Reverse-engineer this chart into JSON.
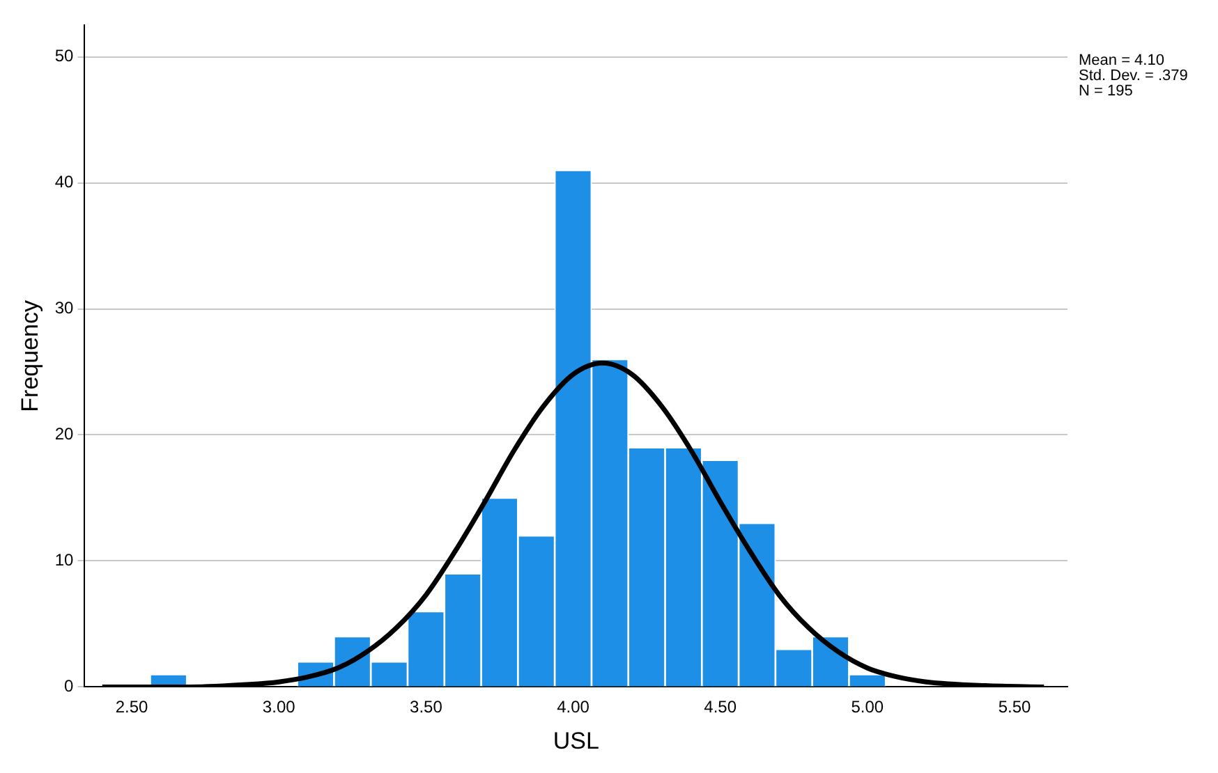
{
  "chart_data": {
    "type": "histogram",
    "xlabel": "USL",
    "ylabel": "Frequency",
    "bins": [
      2.5625,
      2.6875,
      2.8125,
      2.9375,
      3.0625,
      3.1875,
      3.3125,
      3.4375,
      3.5625,
      3.6875,
      3.8125,
      3.9375,
      4.0625,
      4.1875,
      4.3125,
      4.4375,
      4.5625,
      4.6875,
      4.8125,
      4.9375,
      5.0625
    ],
    "values": [
      1,
      0,
      0,
      0,
      2,
      4,
      2,
      6,
      9,
      15,
      12,
      41,
      26,
      19,
      19,
      18,
      13,
      3,
      4,
      1
    ],
    "color": "#1e8fe6",
    "series": [
      {
        "type": "line",
        "color": "#000000",
        "x": [
          2.4,
          2.7,
          2.9,
          3.0,
          3.1,
          3.2,
          3.3,
          3.4,
          3.5,
          3.6,
          3.7,
          3.8,
          3.9,
          4.0,
          4.1,
          4.2,
          4.3,
          4.4,
          4.5,
          4.6,
          4.7,
          4.8,
          4.9,
          5.0,
          5.1,
          5.2,
          5.4,
          5.6
        ],
        "values": [
          0,
          0,
          0.2,
          0.4,
          0.8,
          1.5,
          2.8,
          4.7,
          7.3,
          10.8,
          14.7,
          18.8,
          22.3,
          24.8,
          25.7,
          24.8,
          22.3,
          18.8,
          14.7,
          10.8,
          7.3,
          4.7,
          2.8,
          1.5,
          0.8,
          0.4,
          0.1,
          0
        ]
      }
    ],
    "xlim": [
      2.34,
      5.68
    ],
    "xticks": [
      {
        "value": 2.5,
        "label": "2.50"
      },
      {
        "value": 3,
        "label": "3.00"
      },
      {
        "value": 3.5,
        "label": "3.50"
      },
      {
        "value": 4,
        "label": "4.00"
      },
      {
        "value": 4.5,
        "label": "4.50"
      },
      {
        "value": 5,
        "label": "5.00"
      },
      {
        "value": 5.5,
        "label": "5.50"
      }
    ],
    "ylim": [
      0,
      52.5
    ],
    "yticks": [
      0,
      10,
      20,
      30,
      40,
      50
    ],
    "grid": "y",
    "legend": false,
    "marker": "none",
    "line_style": "solid",
    "annotations": [
      "Mean = 4.10",
      "Std. Dev. = .379",
      "N = 195"
    ]
  }
}
